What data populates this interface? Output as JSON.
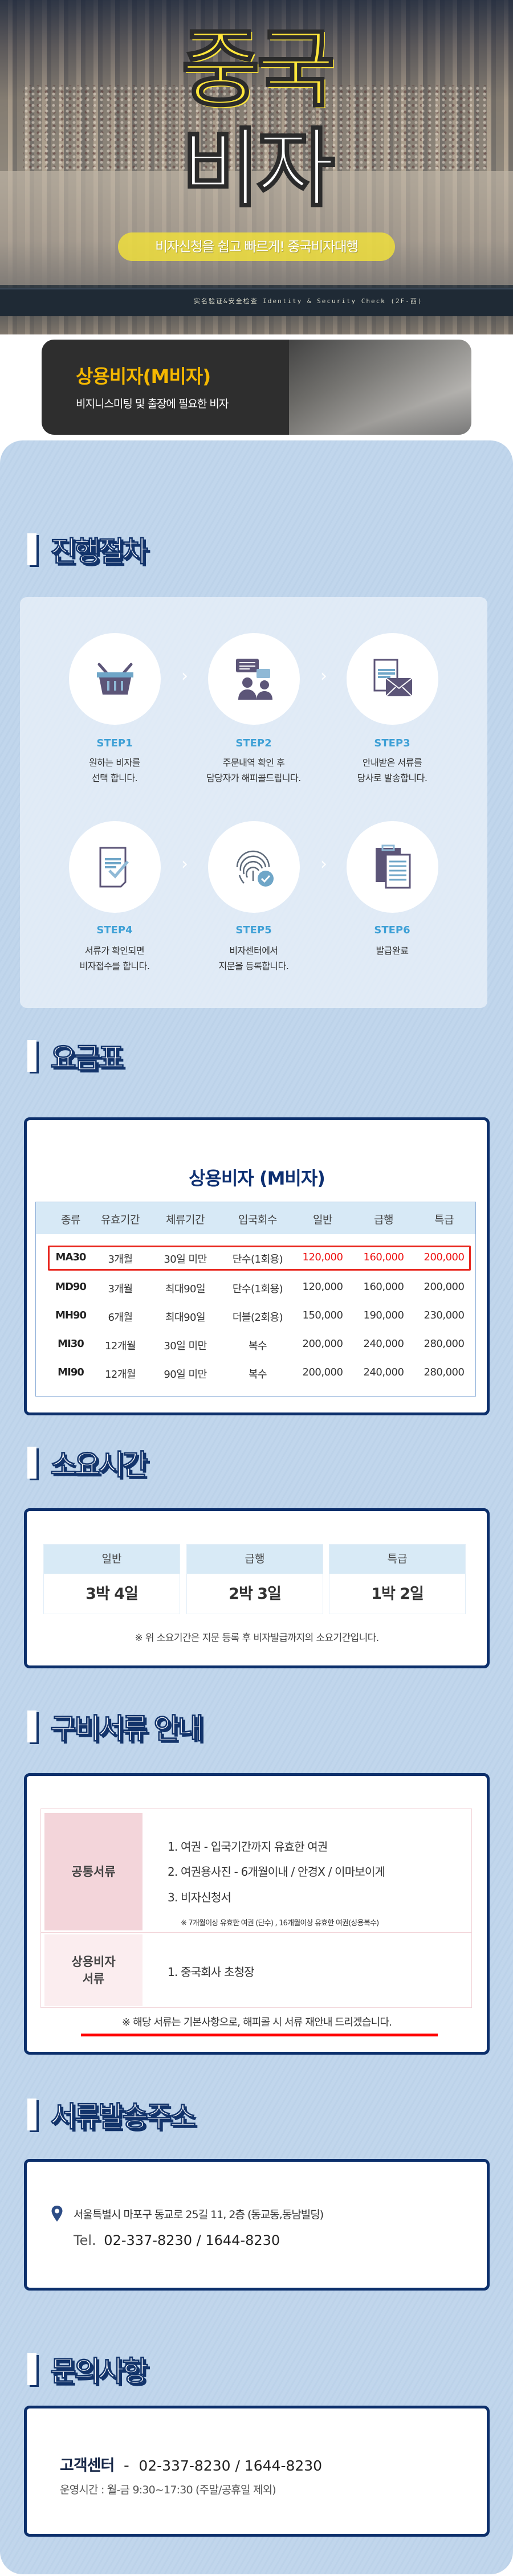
{
  "hero": {
    "title_line1": "중국",
    "title_line2": "비자",
    "tagline": "비자신청을 쉽고 빠르게! 중국비자대행",
    "sign_text": "实名验证&安全检查  Identity & Security Check (2F-西)"
  },
  "visa_card": {
    "title": "상용비자(M비자)",
    "subtitle": "비지니스미팅 및 출장에 필요한 비자"
  },
  "sections": {
    "process": "진행절차",
    "fees": "요금표",
    "duration": "소요시간",
    "documents": "구비서류 안내",
    "address": "서류발송주소",
    "contact": "문의사항"
  },
  "steps": [
    {
      "label": "STEP1",
      "icon": "basket-icon",
      "line1": "원하는 비자를",
      "line2": "선택 합니다."
    },
    {
      "label": "STEP2",
      "icon": "consultation-icon",
      "line1": "주문내역 확인 후",
      "line2": "담당자가 해피콜드립니다."
    },
    {
      "label": "STEP3",
      "icon": "document-mail-icon",
      "line1": "안내받은 서류를",
      "line2": "당사로 발송합니다."
    },
    {
      "label": "STEP4",
      "icon": "document-check-icon",
      "line1": "서류가 확인되면",
      "line2": "비자접수를 합니다."
    },
    {
      "label": "STEP5",
      "icon": "fingerprint-icon",
      "line1": "비자센터에서",
      "line2": "지문을 등록합니다."
    },
    {
      "label": "STEP6",
      "icon": "clipboard-icon",
      "line1": "발급완료",
      "line2": ""
    }
  ],
  "fee_table": {
    "title": "상용비자 (M비자)",
    "headers": [
      "종류",
      "유효기간",
      "체류기간",
      "입국회수",
      "일반",
      "급행",
      "특급"
    ],
    "rows": [
      [
        "MA30",
        "3개월",
        "30일 미만",
        "단수(1회용)",
        "120,000",
        "160,000",
        "200,000"
      ],
      [
        "MD90",
        "3개월",
        "최대90일",
        "단수(1회용)",
        "120,000",
        "160,000",
        "200,000"
      ],
      [
        "MH90",
        "6개월",
        "최대90일",
        "더블(2회용)",
        "150,000",
        "190,000",
        "230,000"
      ],
      [
        "MI30",
        "12개월",
        "30일 미만",
        "복수",
        "200,000",
        "240,000",
        "280,000"
      ],
      [
        "MI90",
        "12개월",
        "90일 미만",
        "복수",
        "200,000",
        "240,000",
        "280,000"
      ]
    ],
    "highlight_color": "#e8261e"
  },
  "duration": {
    "items": [
      {
        "label": "일반",
        "value": "3박 4일"
      },
      {
        "label": "급행",
        "value": "2박 3일"
      },
      {
        "label": "특급",
        "value": "1박 2일"
      }
    ],
    "note": "※ 위 소요기간은 지문 등록 후 비자발급까지의 소요기간입니다."
  },
  "documents": {
    "common_label": "공통서류",
    "common_items": [
      "1. 여권 - 입국기간까지 유효한 여권",
      "2. 여권용사진 - 6개월이내 / 안경X / 이마보이게",
      "3. 비자신청서"
    ],
    "common_note": "※ 7개월이상 유효한 여권 (단수) , 16개월이상 유효한 여권(상용복수)",
    "visa_label_1": "상용비자",
    "visa_label_2": "서류",
    "visa_items": [
      "1. 중국회사 초청장"
    ],
    "note": "※ 해당 서류는 기본사항으로, 해피콜 시 서류 재안내 드리겠습니다."
  },
  "address": {
    "text": "서울특별시 마포구  동교로 25길 11, 2층 (동교동,동남빌딩)",
    "tel_label": "Tel.",
    "tel": "02-337-8230 / 1644-8230"
  },
  "contact": {
    "label": "고객센터",
    "separator": "-",
    "phone": "02-337-8230 / 1644-8230",
    "hours": "운영시간 : 월-금 9:30~17:30 (주말/공휴일 제외)"
  },
  "colors": {
    "navy": "#0c2f6b",
    "panel": "#c1d6ec",
    "step_blue": "#3ea0d6",
    "card_title": "#f5b800",
    "hero_yellow": "#ffe63a",
    "red": "#ee1111"
  }
}
